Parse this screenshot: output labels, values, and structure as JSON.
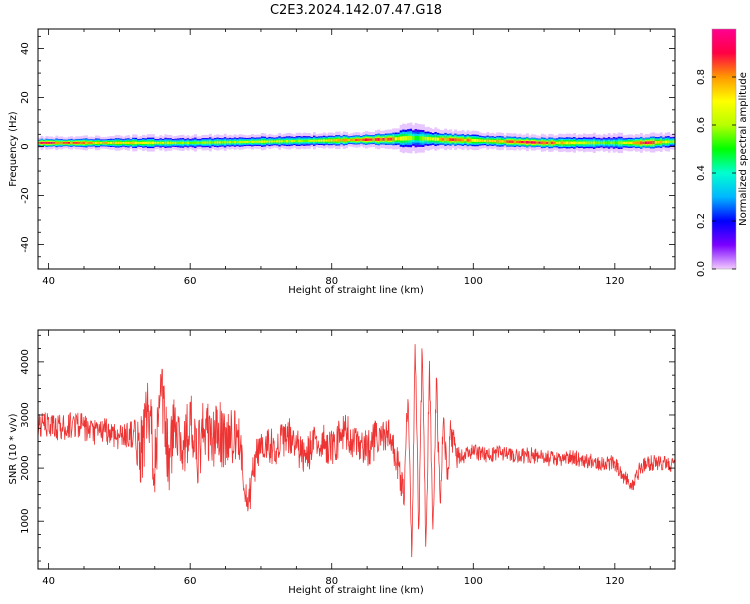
{
  "title": "C2E3.2024.142.07.47.G18",
  "chart_data": [
    {
      "type": "heatmap",
      "title": "C2E3.2024.142.07.47.G18",
      "xlabel": "Height of straight line (km)",
      "ylabel": "Frequency (Hz)",
      "xlim": [
        38.5,
        128.5
      ],
      "ylim": [
        -50,
        48
      ],
      "x_ticks": [
        "40",
        "60",
        "80",
        "100",
        "120"
      ],
      "y_ticks": [
        "40",
        "20",
        "0",
        "-20",
        "-40"
      ],
      "colorbar": {
        "label": "Normalized spectral amplitude",
        "range": [
          0.0,
          1.0
        ],
        "ticks": [
          "0.0",
          "0.2",
          "0.4",
          "0.6",
          "0.8"
        ],
        "colors": [
          "#f2ccff",
          "#7a00ff",
          "#0000ff",
          "#00b7ff",
          "#00ffd0",
          "#00ff00",
          "#b8ff00",
          "#ffff00",
          "#ff9900",
          "#ff0044",
          "#ff0090"
        ]
      },
      "band_center_hz": [
        [
          40,
          1.5
        ],
        [
          50,
          1.5
        ],
        [
          60,
          1.5
        ],
        [
          70,
          2.0
        ],
        [
          80,
          2.5
        ],
        [
          88,
          3.0
        ],
        [
          91,
          3.5
        ],
        [
          95,
          3.0
        ],
        [
          100,
          2.5
        ],
        [
          110,
          1.5
        ],
        [
          120,
          1.5
        ],
        [
          124,
          1.5
        ],
        [
          128,
          2.0
        ]
      ],
      "band_halfwidth_hz": [
        [
          40,
          2.5
        ],
        [
          55,
          3.0
        ],
        [
          70,
          3.0
        ],
        [
          85,
          3.0
        ],
        [
          91,
          5.5
        ],
        [
          95,
          4.0
        ],
        [
          105,
          3.0
        ],
        [
          118,
          3.5
        ],
        [
          128,
          3.5
        ]
      ],
      "band_peak_amplitude": [
        [
          40,
          0.9
        ],
        [
          46,
          0.8
        ],
        [
          54,
          0.7
        ],
        [
          58,
          0.6
        ],
        [
          62,
          0.6
        ],
        [
          70,
          0.65
        ],
        [
          76,
          0.6
        ],
        [
          84,
          0.9
        ],
        [
          88,
          0.85
        ],
        [
          92,
          0.5
        ],
        [
          97,
          0.9
        ],
        [
          101,
          0.7
        ],
        [
          108,
          0.95
        ],
        [
          114,
          0.7
        ],
        [
          120,
          0.55
        ],
        [
          124,
          0.95
        ],
        [
          128,
          0.6
        ]
      ]
    },
    {
      "type": "line",
      "xlabel": "Height of straight line (km)",
      "ylabel": "SNR (10 * v/v)",
      "xlim": [
        38.5,
        128.5
      ],
      "ylim": [
        100,
        4600
      ],
      "x_ticks": [
        "40",
        "60",
        "80",
        "100",
        "120"
      ],
      "y_ticks": [
        "1000",
        "2000",
        "3000",
        "4000"
      ],
      "color": "#ee3333",
      "series": [
        {
          "values": [
            [
              38.5,
              2800
            ],
            [
              40,
              2800
            ],
            [
              42,
              2750
            ],
            [
              44,
              2850
            ],
            [
              46,
              2650
            ],
            [
              48,
              2700
            ],
            [
              50,
              2600
            ],
            [
              52,
              2650
            ],
            [
              53,
              2300
            ],
            [
              54,
              3000
            ],
            [
              55,
              2200
            ],
            [
              56,
              3300
            ],
            [
              57,
              2100
            ],
            [
              58,
              3000
            ],
            [
              59,
              2300
            ],
            [
              60,
              2900
            ],
            [
              61,
              2100
            ],
            [
              62,
              2800
            ],
            [
              63,
              2500
            ],
            [
              64,
              2700
            ],
            [
              65,
              2500
            ],
            [
              66,
              2650
            ],
            [
              67,
              2500
            ],
            [
              67.8,
              1600
            ],
            [
              68.2,
              1300
            ],
            [
              69,
              2000
            ],
            [
              70,
              2500
            ],
            [
              72,
              2400
            ],
            [
              74,
              2600
            ],
            [
              76,
              2200
            ],
            [
              78,
              2500
            ],
            [
              80,
              2400
            ],
            [
              82,
              2700
            ],
            [
              84,
              2300
            ],
            [
              86,
              2500
            ],
            [
              88,
              2600
            ],
            [
              89.5,
              2000
            ],
            [
              90.2,
              1500
            ],
            [
              90.8,
              3500
            ],
            [
              91.3,
              300
            ],
            [
              91.8,
              4300
            ],
            [
              92.3,
              700
            ],
            [
              92.8,
              4400
            ],
            [
              93.3,
              300
            ],
            [
              93.8,
              3900
            ],
            [
              94.3,
              900
            ],
            [
              94.8,
              3600
            ],
            [
              95.3,
              1300
            ],
            [
              95.8,
              3100
            ],
            [
              96.3,
              1700
            ],
            [
              96.8,
              2700
            ],
            [
              97.5,
              2300
            ],
            [
              98,
              2200
            ],
            [
              100,
              2300
            ],
            [
              102,
              2250
            ],
            [
              104,
              2300
            ],
            [
              106,
              2200
            ],
            [
              108,
              2250
            ],
            [
              110,
              2200
            ],
            [
              112,
              2150
            ],
            [
              114,
              2200
            ],
            [
              116,
              2150
            ],
            [
              118,
              2100
            ],
            [
              120,
              2100
            ],
            [
              121.5,
              1800
            ],
            [
              122.5,
              1650
            ],
            [
              123.5,
              2000
            ],
            [
              125,
              2100
            ],
            [
              127,
              2100
            ],
            [
              128.5,
              2050
            ]
          ],
          "noise_amplitude": [
            [
              38.5,
              260
            ],
            [
              52,
              260
            ],
            [
              53,
              700
            ],
            [
              66,
              600
            ],
            [
              67.5,
              300
            ],
            [
              69,
              350
            ],
            [
              89,
              380
            ],
            [
              90,
              300
            ],
            [
              97.5,
              300
            ],
            [
              98.5,
              150
            ],
            [
              128.5,
              150
            ]
          ]
        }
      ]
    }
  ]
}
